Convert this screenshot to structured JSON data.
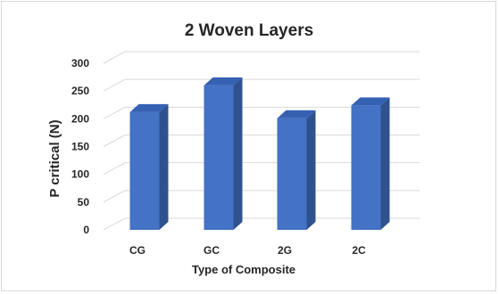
{
  "chart_data": {
    "type": "bar",
    "title": "2 Woven Layers",
    "xlabel": "Type of Composite",
    "ylabel": "P critical (N)",
    "categories": [
      "CG",
      "GC",
      "2G",
      "2C"
    ],
    "values": [
      212,
      260,
      201,
      224
    ],
    "ylim": [
      0,
      300
    ],
    "yticks": [
      0,
      50,
      100,
      150,
      200,
      250,
      300
    ],
    "grid": true,
    "legend": "none",
    "three_d": true,
    "colors": {
      "bar_front": "#4472c4",
      "bar_side": "#2f528f",
      "bar_top": "#3461b2",
      "grid": "#d9d9d9"
    }
  }
}
